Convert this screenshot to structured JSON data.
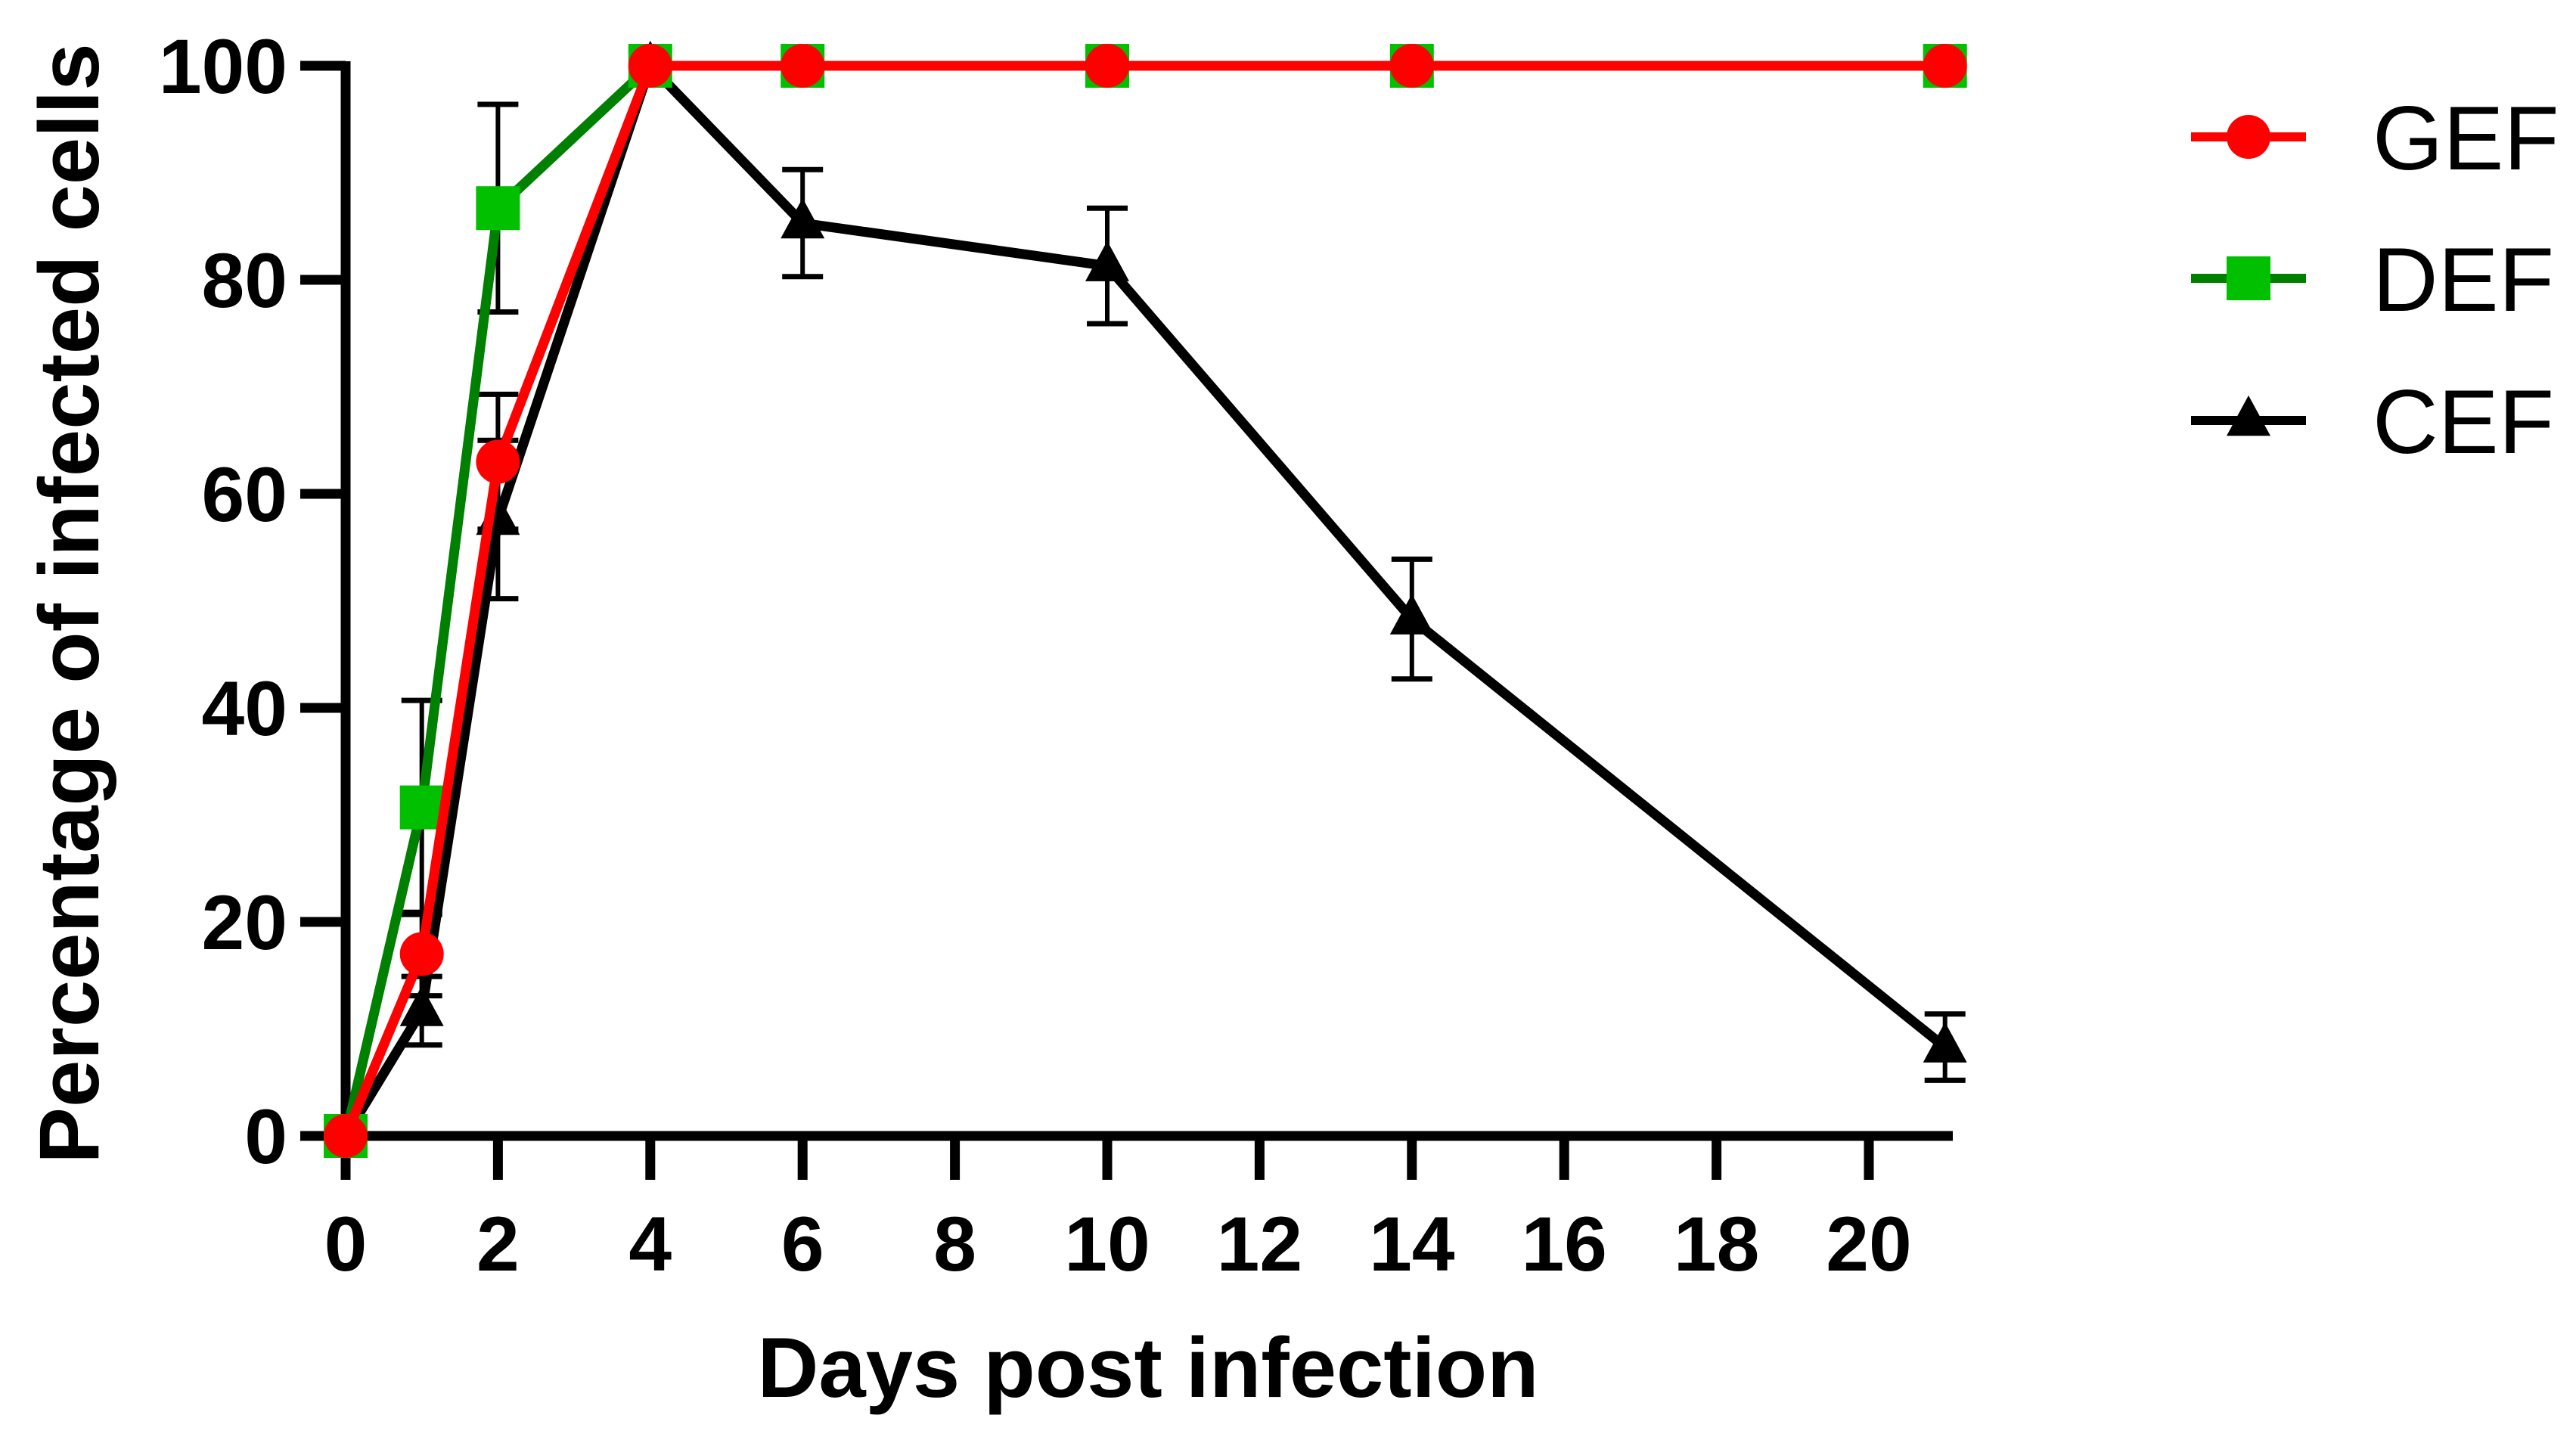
{
  "chart_data": {
    "type": "line",
    "title": "",
    "xlabel": "Days post infection",
    "ylabel": "Percentage of infected cells",
    "xlim": [
      0,
      21
    ],
    "ylim": [
      0,
      100
    ],
    "x_ticks": [
      0,
      2,
      4,
      6,
      8,
      10,
      12,
      14,
      16,
      18,
      20
    ],
    "y_ticks": [
      0,
      20,
      40,
      60,
      80,
      100
    ],
    "grid": false,
    "legend_position": "right",
    "x": [
      0,
      1,
      2,
      4,
      6,
      10,
      14,
      21
    ],
    "series": [
      {
        "name": "GEF",
        "marker": "circle",
        "line_color": "#FF0000",
        "marker_color": "#FF0000",
        "values": [
          0,
          17,
          63,
          100,
          100,
          100,
          100,
          100
        ],
        "errors": [
          0,
          3.9,
          6.3,
          0,
          0,
          0,
          0,
          0
        ]
      },
      {
        "name": "DEF",
        "marker": "square",
        "line_color": "#008000",
        "marker_color": "#00C000",
        "values": [
          0,
          30.7,
          86.7,
          100,
          100,
          100,
          100,
          100
        ],
        "errors": [
          0,
          10,
          9.7,
          0,
          0,
          0,
          0,
          0
        ]
      },
      {
        "name": "CEF",
        "marker": "triangle",
        "line_color": "#000000",
        "marker_color": "#000000",
        "values": [
          0,
          11.7,
          57.6,
          100,
          85.3,
          81.3,
          48.3,
          8.3
        ],
        "errors": [
          0,
          3.2,
          7.4,
          0,
          5.0,
          5.4,
          5.6,
          3.1
        ]
      }
    ]
  },
  "legend": {
    "items": [
      {
        "label": "GEF"
      },
      {
        "label": "DEF"
      },
      {
        "label": "CEF"
      }
    ]
  },
  "axes": {
    "x_title": "Days post infection",
    "y_title": "Percentage of infected cells"
  }
}
